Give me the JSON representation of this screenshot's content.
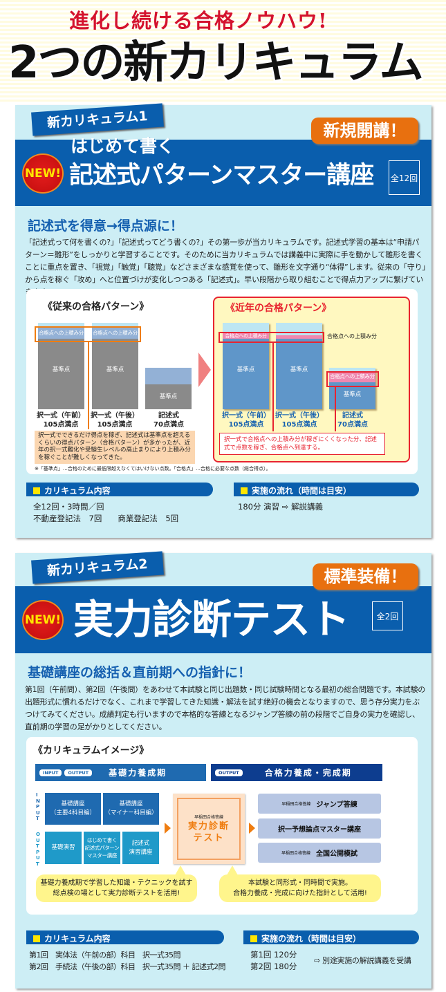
{
  "hero": {
    "subtitle": "進化し続ける合格ノウハウ!",
    "title": "2つの新カリキュラム"
  },
  "course1": {
    "ribbon": "新カリキュラム1",
    "badge": "新規開講！",
    "new_mark": "NEW!",
    "pretitle": "はじめて書く",
    "title": "記述式パターンマスター講座",
    "count": "全12回",
    "heading": "記述式を得意→得点源に！",
    "paragraph": "「記述式って何を書くの?」「記述式ってどう書くの?」その第一歩が当カリキュラムです。記述式学習の基本は“申請パターン＝雛形”をしっかりと学習することです。そのために当カリキュラムでは講義中に実際に手を動かして雛形を書くことに重点を置き、「視覚」「触覚」「聴覚」などさまざまな感覚を使って、雛形を文字通り“体得”します。従来の「守り」から点を稼ぐ「攻め」へと位置づけが変化しつつある「記述式」。早い段階から取り組むことで得点力アップに繋げていきます。",
    "diagram": {
      "old_title": "《従来の合格パターン》",
      "new_title": "《近年の合格パターン》",
      "extra": "合格点への上積み分",
      "base": "基準点",
      "cols": [
        {
          "name": "択一式（午前）",
          "max": "105点満点"
        },
        {
          "name": "択一式（午後）",
          "max": "105点満点"
        },
        {
          "name": "記述式",
          "max": "70点満点"
        }
      ],
      "old_note": "択一式でできるだけ得点を稼ぎ、記述式は基準点を超えるくらいの得点パターン（合格パターン）が多かったが、近年の択一式難化や受験生レベルの高止まりにより上積み分を稼ぐことが難しくなってきた。",
      "new_note": "択一式で合格点への上積み分が稼ぎにくくなった分、記述式で点数を稼ぎ、合格点へ到達する。",
      "footnote": "※「基準点」…合格のために最低限越えなくてはいけない点数。「合格点」…合格に必要な点数（総合得点）。"
    },
    "content_title": "カリキュラム内容",
    "content": [
      "全12回・3時間／回",
      "不動産登記法　7回　　商業登記法　5回"
    ],
    "flow_title": "実施の流れ（時間は目安）",
    "flow": "180分 演習 ⇨ 解説講義"
  },
  "course2": {
    "ribbon": "新カリキュラム2",
    "badge": "標準装備！",
    "new_mark": "NEW!",
    "title": "実力診断テスト",
    "count": "全2回",
    "heading": "基礎講座の総括＆直前期への指針に！",
    "paragraph": "第1回（午前問）、第2回（午後問）をあわせて本試験と同じ出題数・同じ試験時間となる最初の総合問題です。本試験の出題形式に慣れるだけでなく、これまで学習してきた知識・解法を試す絶好の機会となりますので、思う存分実力をぶつけてみてください。成績判定も行いますので本格的な答練となるジャンプ答練の前の段階でご自身の実力を確認し、直前期の学習の足がかりとしてください。",
    "diagram": {
      "title": "《カリキュラムイメージ》",
      "phase1": {
        "tags": [
          "INPUT",
          "OUTPUT"
        ],
        "label": "基礎力養成期"
      },
      "phase2": {
        "tags": [
          "OUTPUT"
        ],
        "label": "合格力養成・完成期"
      },
      "input_label": "INPUT",
      "output_label": "OUTPUT",
      "input_boxes": [
        "基礎講座\n（主要4科目編）",
        "基礎講座\n（マイナー科目編）"
      ],
      "output_boxes": [
        "基礎演習",
        "はじめて書く\n記述式パターン\nマスター講座",
        "記述式\n演習講座"
      ],
      "center": {
        "brand": "早稲田合格答練",
        "title": "実力診断\nテスト"
      },
      "right_boxes": [
        {
          "brand": "早稲田合格答練",
          "label": "ジャンプ答練"
        },
        {
          "brand": "",
          "label": "択一予想論点マスター講座"
        },
        {
          "brand": "早稲田合格答練",
          "label": "全国公開模試"
        }
      ],
      "callout_left": "基礎力養成期で学習した知識・テクニックを試す\n総点検の場として実力診断テストを活用!",
      "callout_right": "本試験と同形式・同時間で実施。\n合格力養成・完成に向けた指針として活用!"
    },
    "content_title": "カリキュラム内容",
    "content": [
      "第1回　実体法（午前の部）科目　択一式35問",
      "第2回　手続法（午後の部）科目　択一式35問 ＋ 記述式2問"
    ],
    "flow_title": "実施の流れ（時間は目安）",
    "flow": [
      "第1回 120分",
      "第2回 180分"
    ],
    "flow_after": "⇨ 別途実施の解説講義を受講"
  }
}
